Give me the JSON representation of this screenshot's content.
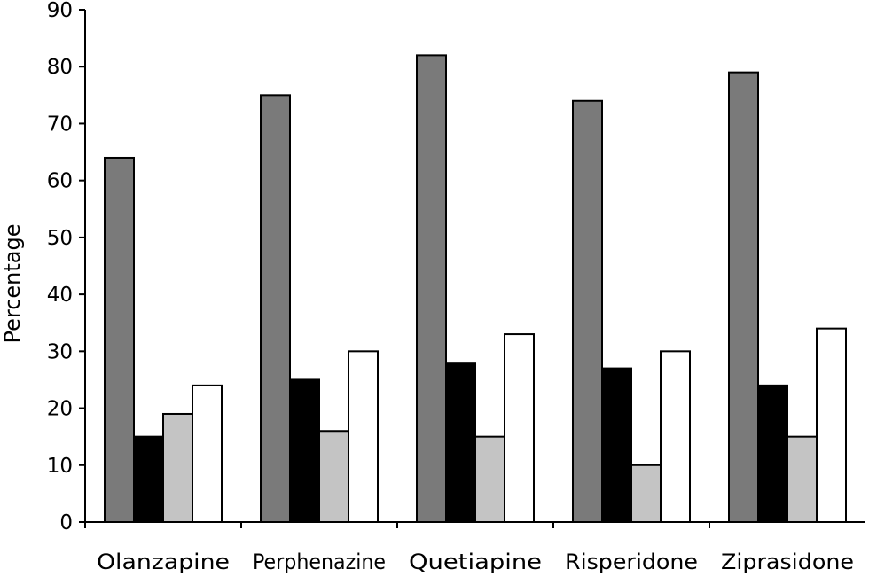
{
  "chart_data": {
    "type": "bar",
    "title": "",
    "xlabel": "",
    "ylabel": "Percentage",
    "ylim": [
      0,
      90
    ],
    "yticks": [
      0,
      10,
      20,
      30,
      40,
      50,
      60,
      70,
      80,
      90
    ],
    "grid": false,
    "legend": "none",
    "categories": [
      "Olanzapine",
      "Perphenazine",
      "Quetiapine",
      "Risperidone",
      "Ziprasidone"
    ],
    "series": [
      {
        "color": "#7a7a7a",
        "values": [
          64,
          75,
          82,
          74,
          79
        ]
      },
      {
        "color": "#000000",
        "values": [
          15,
          25,
          28,
          27,
          24
        ]
      },
      {
        "color": "#c4c4c4",
        "values": [
          19,
          16,
          15,
          10,
          15
        ]
      },
      {
        "color": "#ffffff",
        "values": [
          24,
          30,
          33,
          30,
          34
        ]
      }
    ]
  }
}
